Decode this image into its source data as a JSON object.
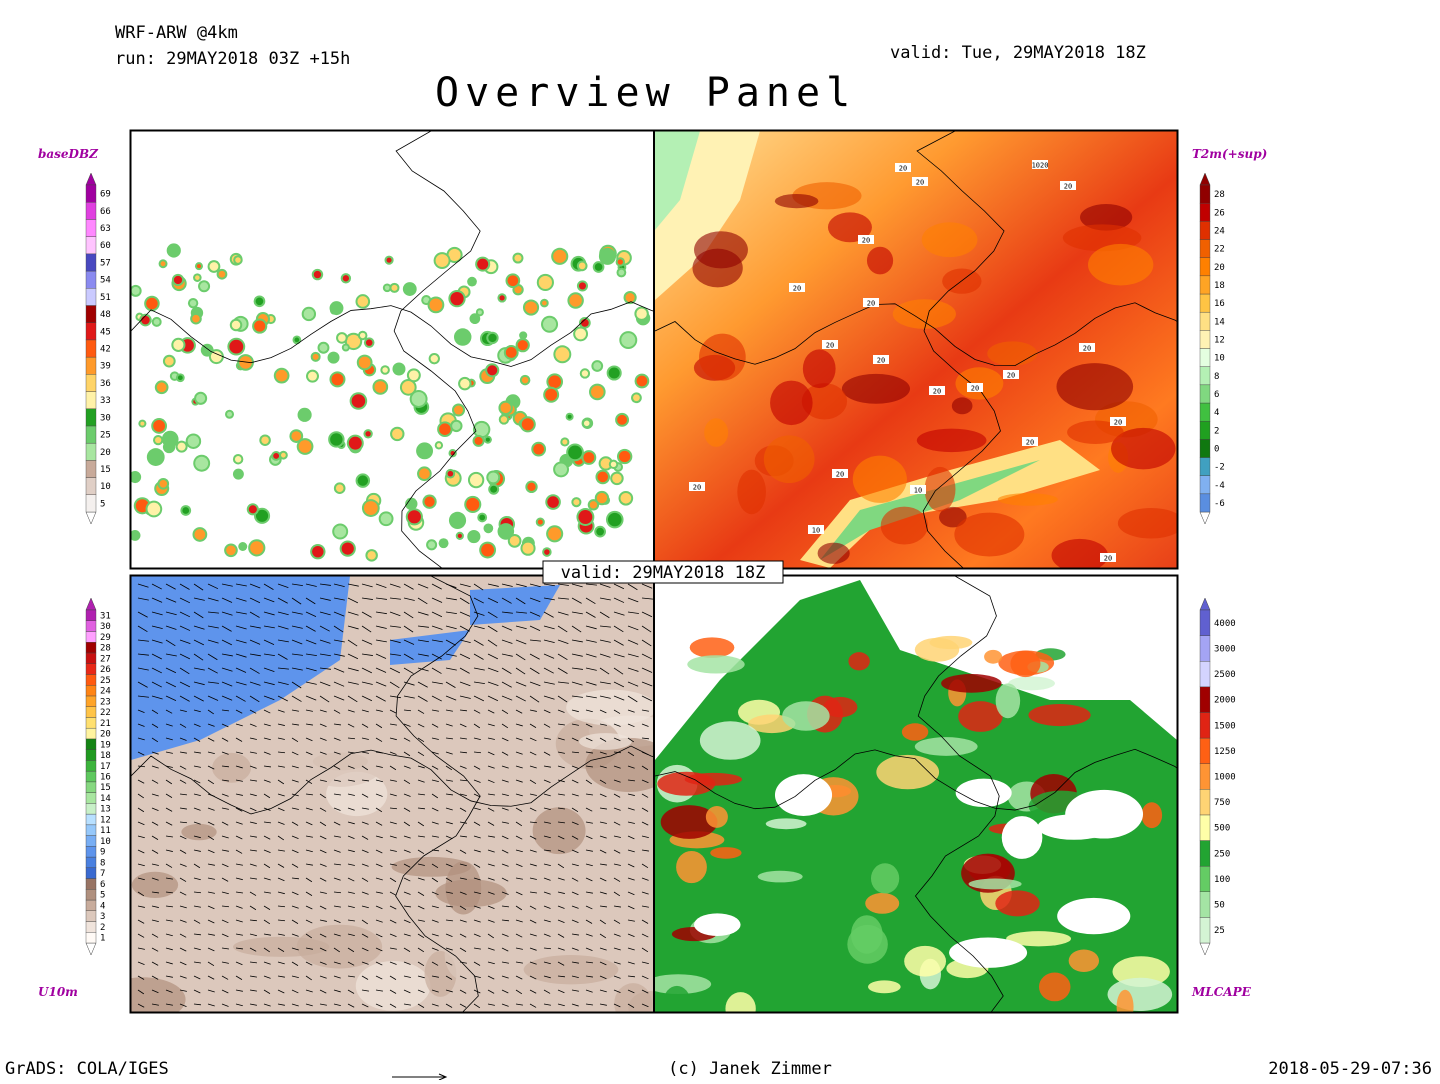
{
  "header": {
    "model": "WRF-ARW @4km",
    "run": "run: 29MAY2018 03Z +15h",
    "valid": "valid: Tue, 29MAY2018 18Z",
    "title": "Overview Panel"
  },
  "panels": [
    {
      "label": "baseDBZ",
      "colorbar": {
        "labels": [
          5,
          10,
          15,
          20,
          25,
          30,
          33,
          36,
          39,
          42,
          45,
          48,
          51,
          54,
          57,
          60,
          63,
          66,
          69
        ],
        "colors": [
          "#f4f0ee",
          "#e0cfc6",
          "#c8aa9a",
          "#a8e6a0",
          "#6ccc6c",
          "#22a022",
          "#fff2a8",
          "#ffd468",
          "#ff9a2a",
          "#ff5a10",
          "#e01818",
          "#a00000",
          "#cacaff",
          "#8a8af0",
          "#4848c0",
          "#ffc4ff",
          "#ff88ff",
          "#e040e0",
          "#a000a0"
        ]
      }
    },
    {
      "label": "T2m(+sup)",
      "colorbar": {
        "labels": [
          -6,
          -4,
          -2,
          0,
          2,
          4,
          6,
          8,
          10,
          12,
          14,
          16,
          18,
          20,
          22,
          24,
          26,
          28
        ],
        "colors": [
          "#5a8ee0",
          "#80b0f0",
          "#40a0c0",
          "#107810",
          "#20a020",
          "#40c040",
          "#80d880",
          "#b4f0b4",
          "#e4ffe0",
          "#fff2b4",
          "#ffe084",
          "#ffc444",
          "#ffa424",
          "#ff8000",
          "#f06000",
          "#e03000",
          "#c00000",
          "#900000"
        ]
      }
    },
    {
      "label": "U10m",
      "colorbar": {
        "labels": [
          1,
          2,
          3,
          4,
          5,
          6,
          7,
          8,
          9,
          10,
          11,
          12,
          13,
          14,
          15,
          16,
          17,
          18,
          19,
          20,
          21,
          22,
          23,
          24,
          25,
          26,
          27,
          28,
          29,
          30,
          31
        ],
        "colors": [
          "#fffaf6",
          "#f0e4dc",
          "#dcc8bc",
          "#c8ac9c",
          "#b0907e",
          "#987464",
          "#3a6ad0",
          "#4a80e0",
          "#5e94ec",
          "#78aef4",
          "#96c8fa",
          "#b8e0ff",
          "#c8f0c8",
          "#a8e6a0",
          "#86d880",
          "#5ec85e",
          "#3cb43c",
          "#209a20",
          "#148414",
          "#fff4a0",
          "#ffe070",
          "#ffc448",
          "#ffa428",
          "#ff8414",
          "#ff5a10",
          "#e82818",
          "#c81010",
          "#a00000",
          "#ffa0ff",
          "#e060e0",
          "#b020b0"
        ]
      }
    },
    {
      "label": "MLCAPE",
      "colorbar": {
        "labels": [
          25,
          50,
          100,
          250,
          500,
          750,
          1000,
          1250,
          1500,
          2000,
          2500,
          3000,
          4000
        ],
        "colors": [
          "#d4f4d4",
          "#a4e4a4",
          "#64cc64",
          "#22a432",
          "#ffffa8",
          "#ffd474",
          "#ff9434",
          "#ff6014",
          "#e02414",
          "#a00000",
          "#d4d4ff",
          "#a4a4f4",
          "#6060d0"
        ]
      }
    }
  ],
  "center_label": "valid: 29MAY2018 18Z",
  "contour_labels": [
    "20",
    "20",
    "1020",
    "20",
    "20",
    "20",
    "20",
    "20",
    "20",
    "20",
    "20",
    "20",
    "20",
    "20",
    "20",
    "10",
    "10",
    "20",
    "20",
    "20"
  ],
  "footer": {
    "left": "GrADS: COLA/IGES",
    "center": "(c) Janek Zimmer",
    "right": "2018-05-29-07:36"
  }
}
